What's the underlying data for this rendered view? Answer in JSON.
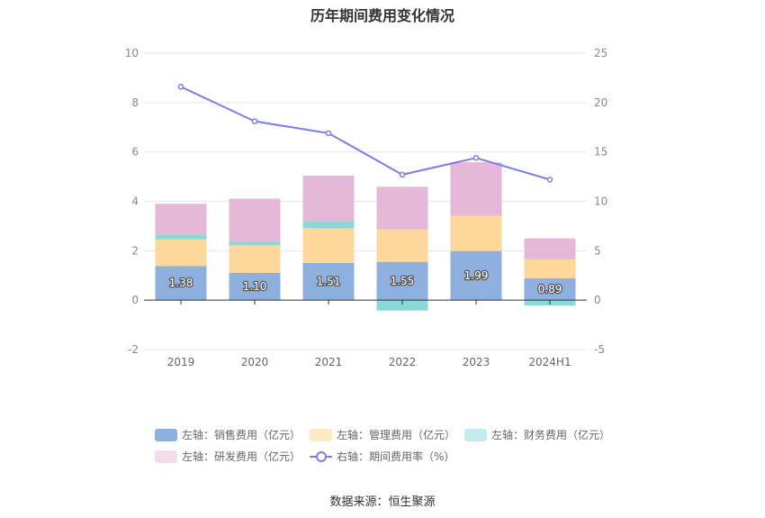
{
  "title": "历年期间费用变化情况",
  "source": "数据来源：恒生聚源",
  "colors": {
    "sales": "#8eb0de",
    "mgmt": "#fdd89a",
    "finance": "#8ad8d8",
    "rd": "#e6b8d8",
    "rate": "#7b7fe8"
  },
  "legend": [
    {
      "key": "sales",
      "label": "左轴：销售费用（亿元）",
      "kind": "bar"
    },
    {
      "key": "mgmt",
      "label": "左轴：管理费用（亿元）",
      "kind": "bar"
    },
    {
      "key": "finance",
      "label": "左轴：财务费用（亿元）",
      "kind": "bar"
    },
    {
      "key": "rd",
      "label": "左轴：研发费用（亿元）",
      "kind": "bar"
    },
    {
      "key": "rate",
      "label": "右轴：期间费用率（%）",
      "kind": "line"
    }
  ],
  "chart_data": {
    "type": "bar",
    "stacked": true,
    "categories": [
      "2019",
      "2020",
      "2021",
      "2022",
      "2023",
      "2024H1"
    ],
    "series": [
      {
        "name": "左轴：销售费用（亿元）",
        "key": "sales",
        "axis": "left",
        "values": [
          1.38,
          1.1,
          1.51,
          1.55,
          1.99,
          0.89
        ],
        "labels": [
          "1.38",
          "1.10",
          "1.51",
          "1.55",
          "1.99",
          "0.89"
        ]
      },
      {
        "name": "左轴：管理费用（亿元）",
        "key": "mgmt",
        "axis": "left",
        "values": [
          1.08,
          1.12,
          1.4,
          1.32,
          1.42,
          0.76
        ]
      },
      {
        "name": "左轴：财务费用（亿元）",
        "key": "finance",
        "axis": "left",
        "values": [
          0.2,
          0.14,
          0.3,
          -0.42,
          0.02,
          -0.22
        ]
      },
      {
        "name": "左轴：研发费用（亿元）",
        "key": "rd",
        "axis": "left",
        "values": [
          1.24,
          1.75,
          1.83,
          1.72,
          2.15,
          0.85
        ]
      },
      {
        "name": "右轴：期间费用率（%）",
        "key": "rate",
        "axis": "right",
        "type": "line",
        "values": [
          21.6,
          18.1,
          16.9,
          12.7,
          14.4,
          12.2
        ]
      }
    ],
    "left_axis": {
      "min": -2,
      "max": 10,
      "ticks": [
        "-2",
        "0",
        "2",
        "4",
        "6",
        "8",
        "10"
      ]
    },
    "right_axis": {
      "min": -5,
      "max": 25,
      "ticks": [
        "-5",
        "0",
        "5",
        "10",
        "15",
        "20",
        "25"
      ]
    },
    "grid": true,
    "legend_position": "bottom"
  }
}
